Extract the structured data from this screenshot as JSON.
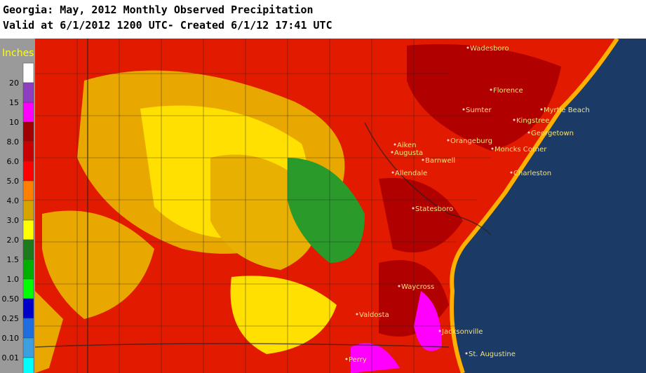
{
  "header": {
    "title": "Georgia: May, 2012 Monthly Observed Precipitation",
    "subtitle": "Valid at 6/1/2012 1200 UTC- Created 6/1/12 17:41 UTC"
  },
  "legend": {
    "unit": "Inches",
    "labels": [
      "20",
      "15",
      "10",
      "8.0",
      "6.0",
      "5.0",
      "4.0",
      "3.0",
      "2.0",
      "1.5",
      "1.0",
      "0.50",
      "0.25",
      "0.10",
      "0.01"
    ],
    "colors": [
      "#ffffff",
      "#8e3fbf",
      "#ff00ff",
      "#a00000",
      "#c80000",
      "#ff0000",
      "#ff8000",
      "#d6a400",
      "#ffff00",
      "#1d7a1d",
      "#00b000",
      "#00ff00",
      "#0000c8",
      "#1e6ee0",
      "#3ca0e0",
      "#00ffff"
    ]
  },
  "cities": [
    "Wadesboro",
    "Florence",
    "Myrtle Beach",
    "Sumter",
    "Kingstree",
    "Georgetown",
    "Orangeburg",
    "Aiken",
    "Augusta",
    "Moncks Corner",
    "Barnwell",
    "Allendale",
    "Charleston",
    "Statesboro",
    "Waycross",
    "Valdosta",
    "Jacksonville",
    "St. Augustine",
    "Perry"
  ]
}
